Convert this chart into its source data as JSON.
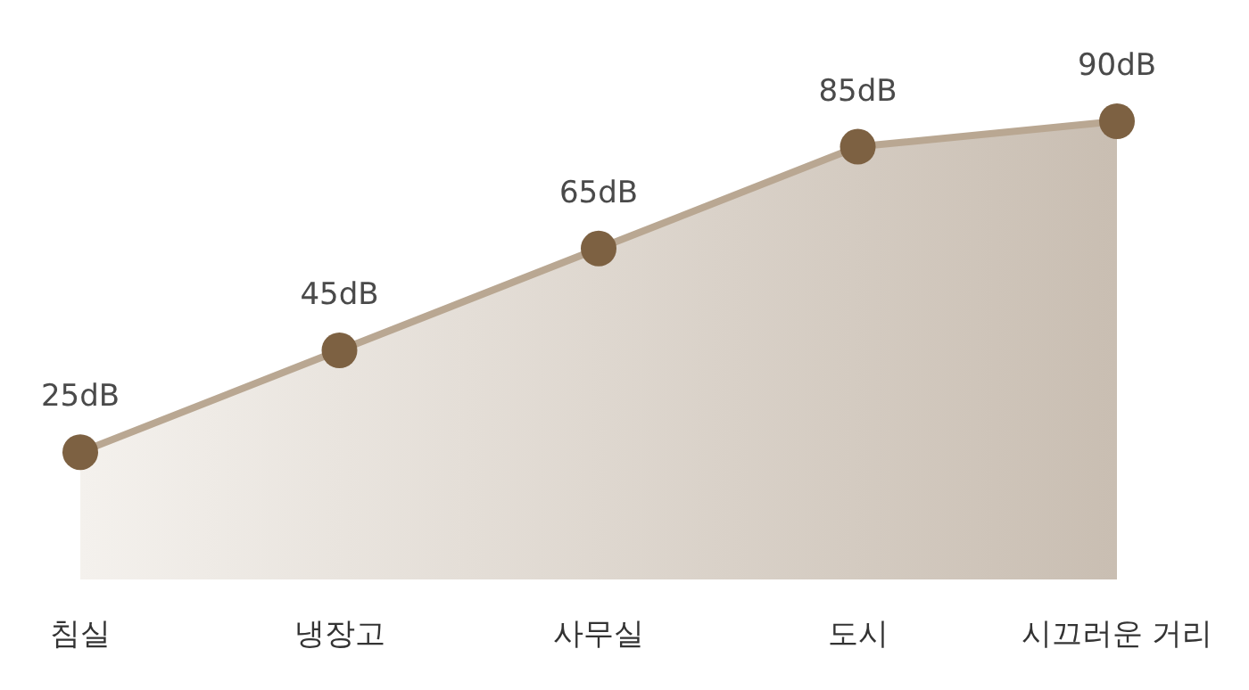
{
  "chart_data": {
    "type": "area",
    "categories": [
      "침실",
      "냉장고",
      "사무실",
      "도시",
      "시끄러운 거리"
    ],
    "values": [
      25,
      45,
      65,
      85,
      90
    ],
    "value_labels": [
      "25dB",
      "45dB",
      "65dB",
      "85dB",
      "90dB"
    ],
    "color": "#7d6142",
    "marker": "circle"
  }
}
